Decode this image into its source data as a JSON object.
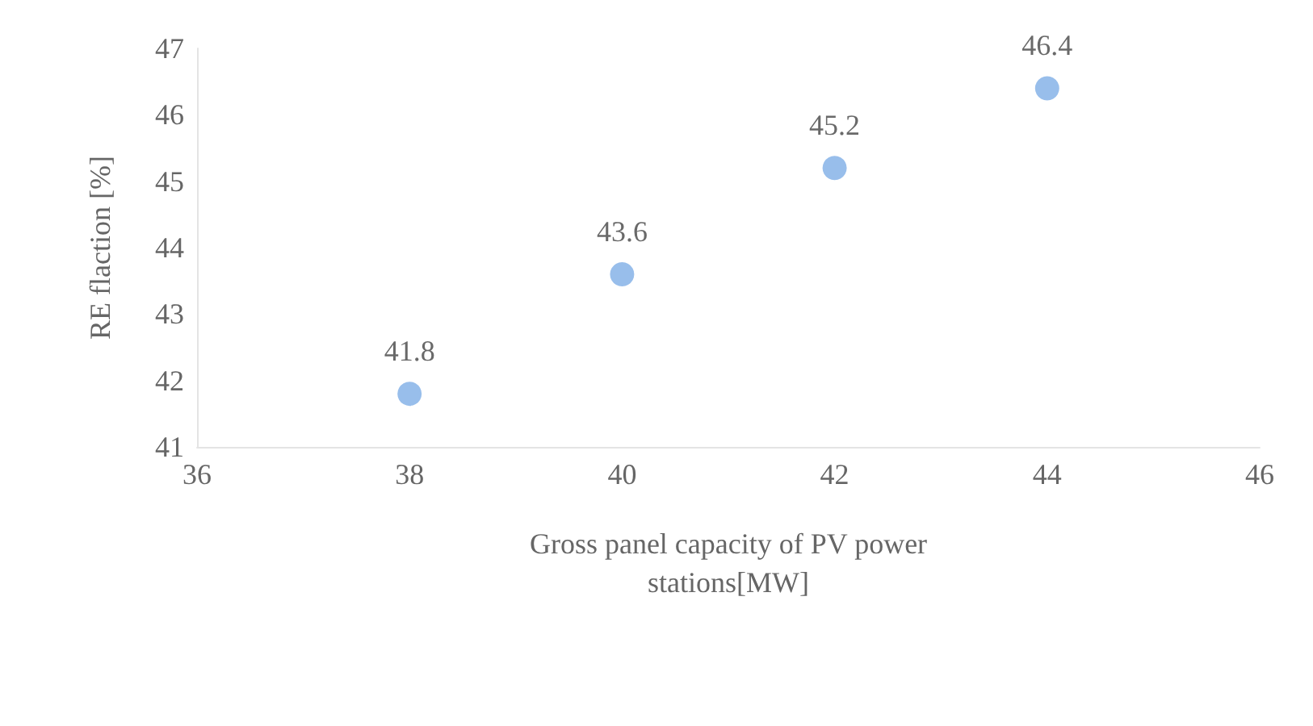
{
  "chart_data": {
    "type": "scatter",
    "xlabel": "Gross panel capacity of PV power\nstations[MW]",
    "ylabel": "RE flaction [%]",
    "x": [
      38,
      40,
      42,
      44
    ],
    "series": [
      {
        "color": "#7eaee6",
        "values": [
          41.8,
          43.6,
          45.2,
          46.4
        ]
      }
    ],
    "xlim": [
      36,
      46
    ],
    "xticks": [
      36,
      38,
      40,
      42,
      44,
      46
    ],
    "ylim": [
      41,
      47
    ],
    "yticks": [
      41,
      42,
      43,
      44,
      45,
      46,
      47
    ],
    "grid": false,
    "marker": "circle",
    "data_labels": true
  }
}
